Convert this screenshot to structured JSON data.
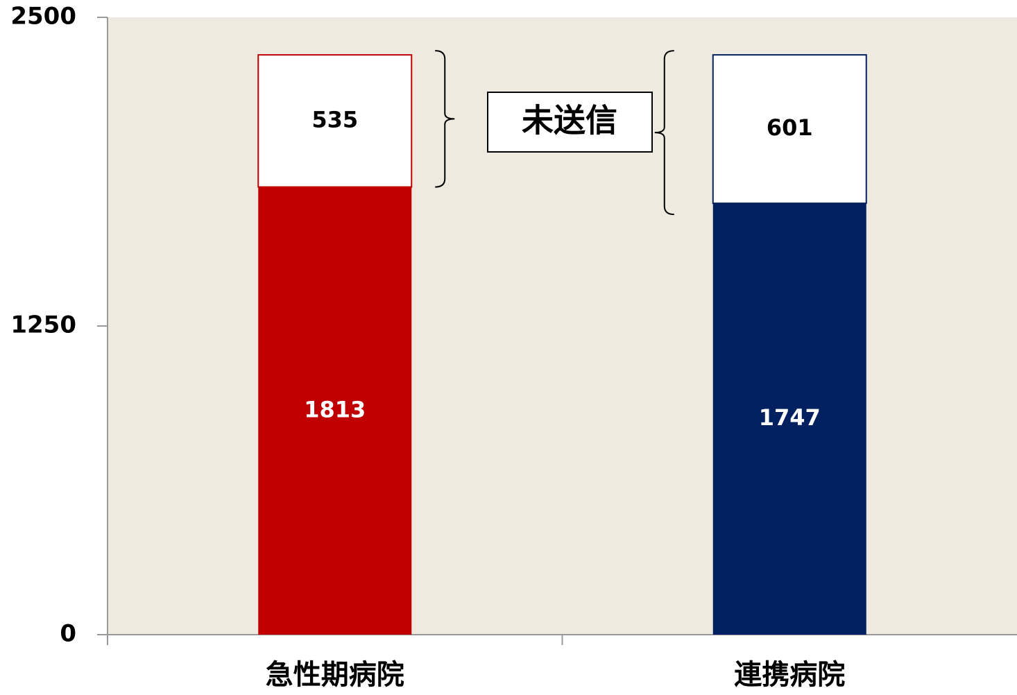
{
  "chart_data": {
    "type": "stacked_bar",
    "categories": [
      "急性期病院",
      "連携病院"
    ],
    "series": [
      {
        "colors": [
          "#c00000",
          "#002060"
        ],
        "values": [
          1813,
          1747
        ]
      },
      {
        "color": "#ffffff",
        "edgecolors": [
          "#c00000",
          "#002060"
        ],
        "values": [
          535,
          601
        ]
      }
    ],
    "annotation": "未送信",
    "ylim": [
      0,
      2500
    ],
    "yticks": [
      0,
      1250,
      2500
    ],
    "background": "#eeeae0"
  }
}
